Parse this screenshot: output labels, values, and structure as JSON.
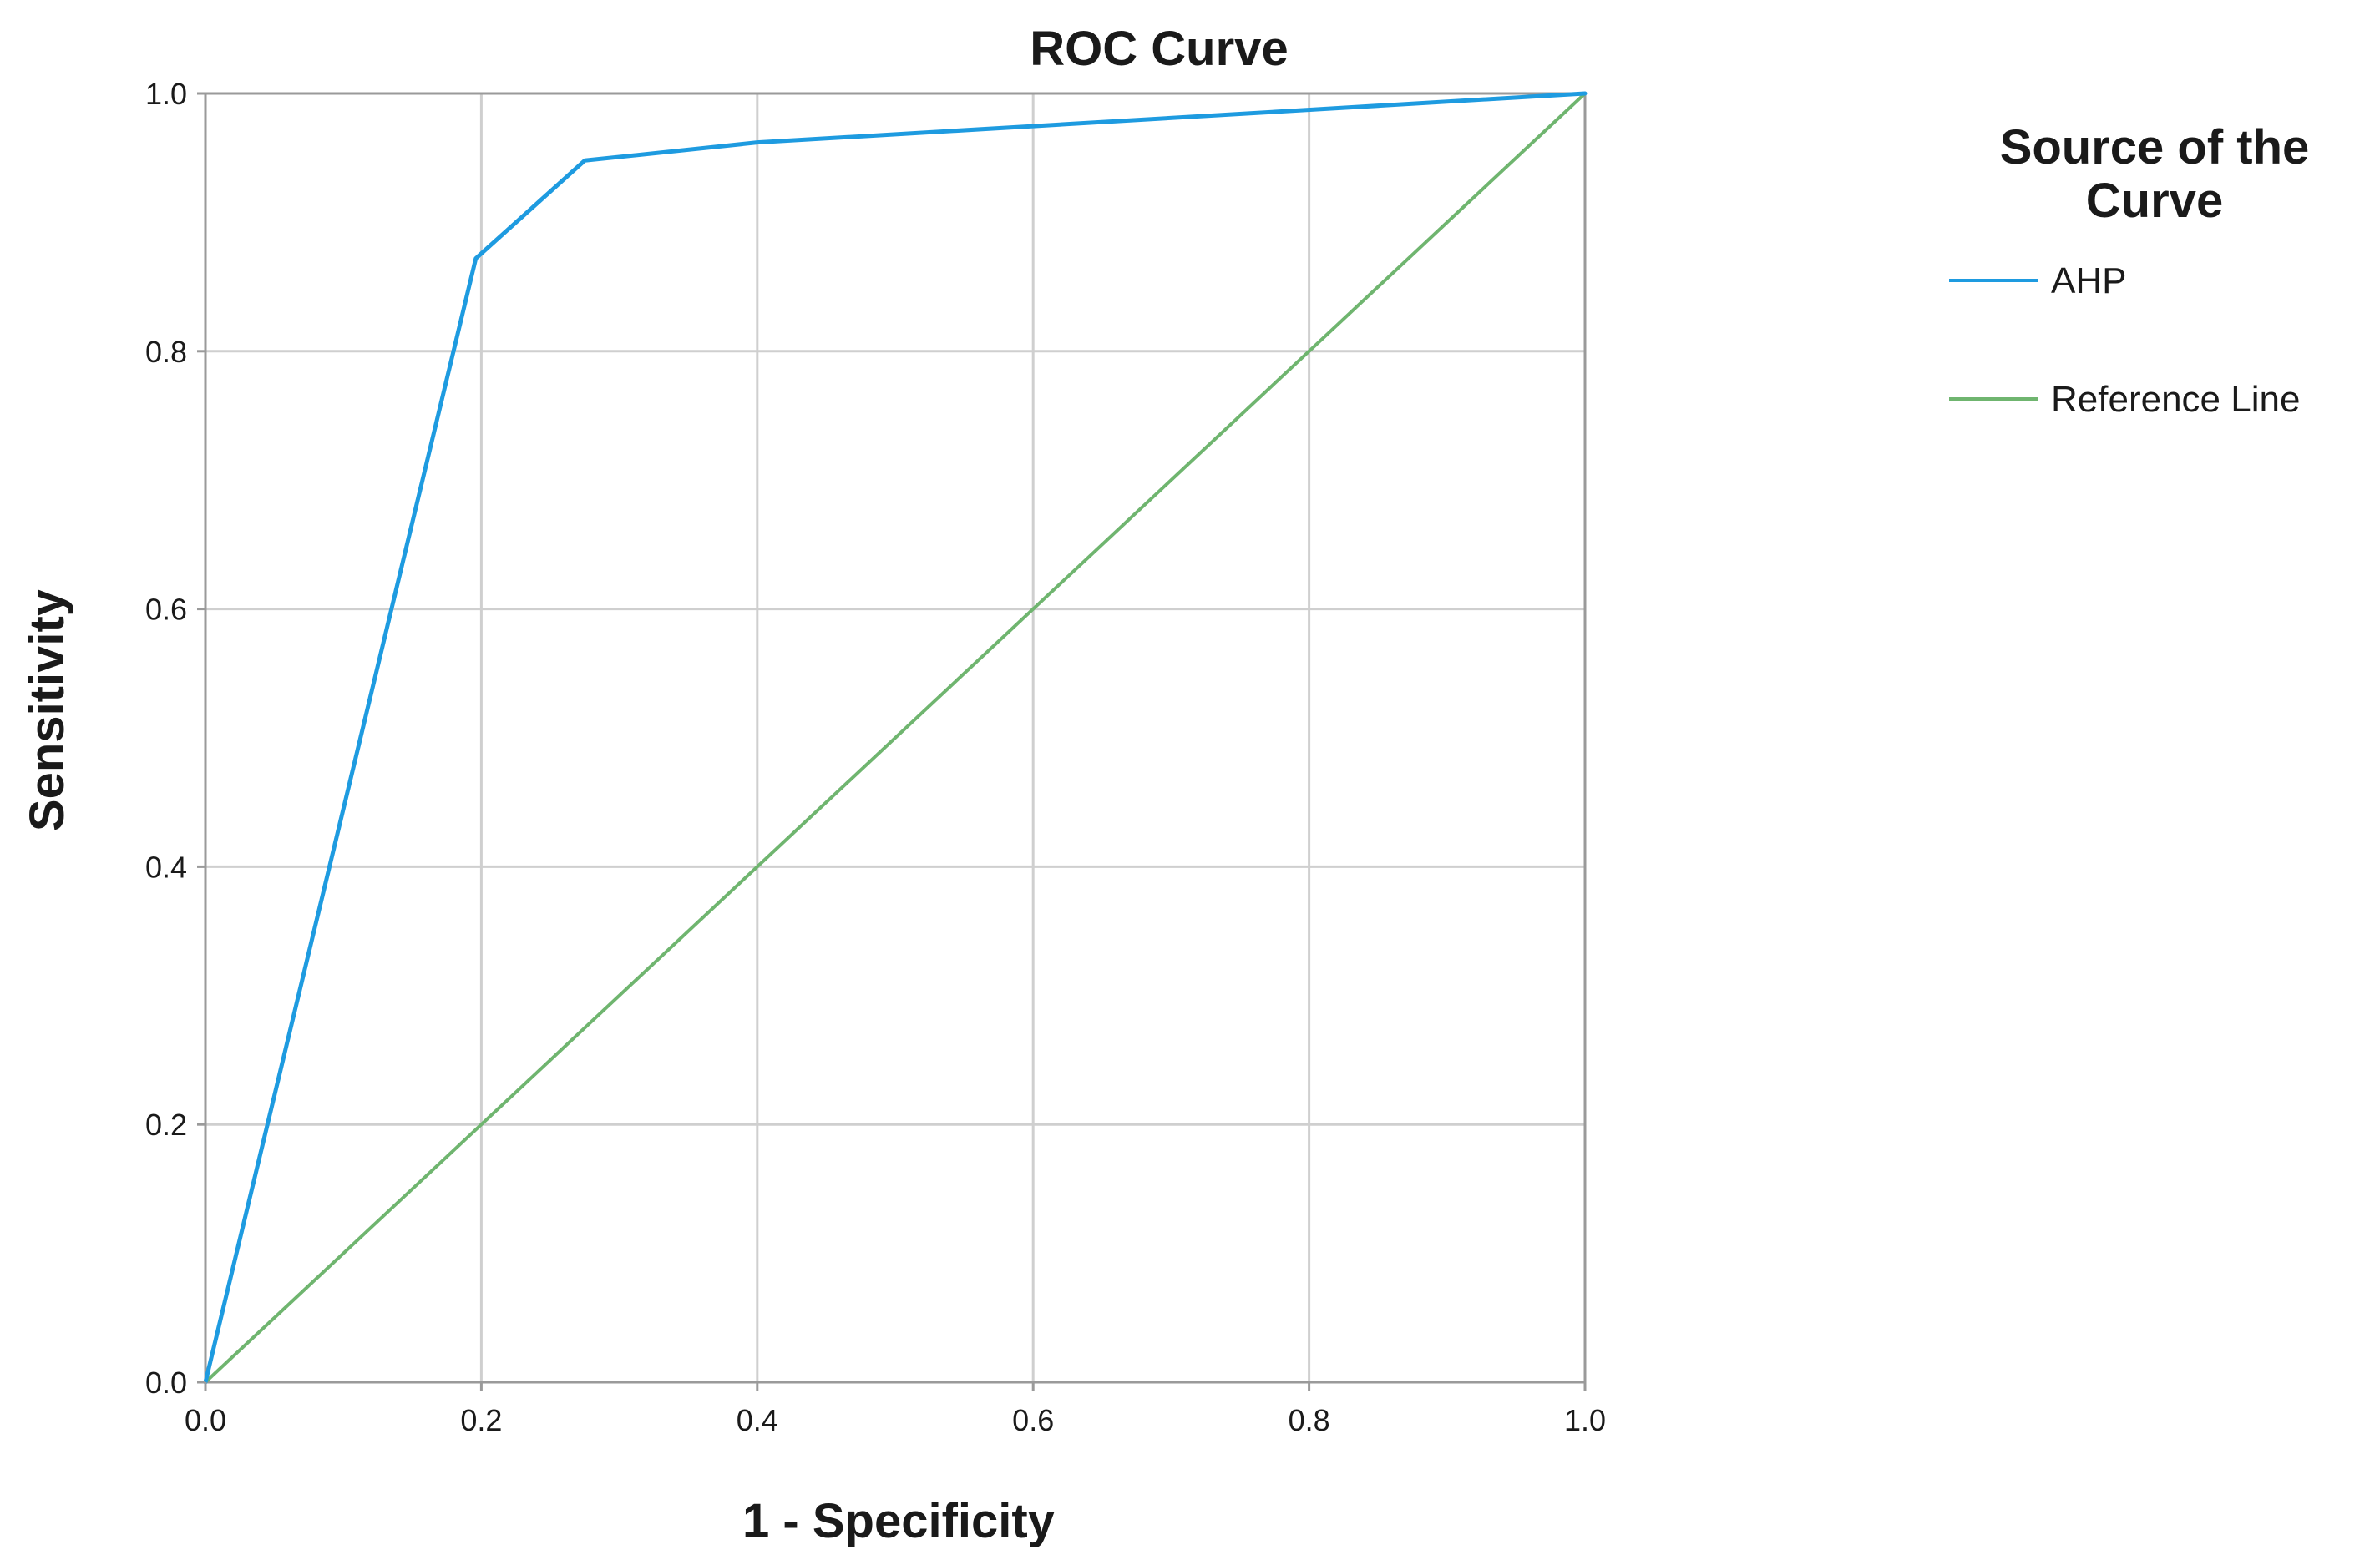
{
  "chart_data": {
    "type": "line",
    "title": "ROC Curve",
    "xlabel": "1 - Specificity",
    "ylabel": "Sensitivity",
    "xlim": [
      0,
      1
    ],
    "ylim": [
      0,
      1
    ],
    "x_ticks": [
      "0.0",
      "0.2",
      "0.4",
      "0.6",
      "0.8",
      "1.0"
    ],
    "y_ticks": [
      "0.0",
      "0.2",
      "0.4",
      "0.6",
      "0.8",
      "1.0"
    ],
    "grid": true,
    "legend": {
      "title_lines": [
        "Source of the",
        "Curve"
      ],
      "placement": "right-top"
    },
    "series": [
      {
        "name": "AHP",
        "color": "#1E9BE0",
        "x": [
          0.0,
          0.196,
          0.275,
          0.4,
          1.0
        ],
        "y": [
          0.0,
          0.872,
          0.948,
          0.962,
          1.0
        ]
      },
      {
        "name": "Reference Line",
        "color": "#6FB56F",
        "x": [
          0.0,
          1.0
        ],
        "y": [
          0.0,
          1.0
        ]
      }
    ]
  }
}
